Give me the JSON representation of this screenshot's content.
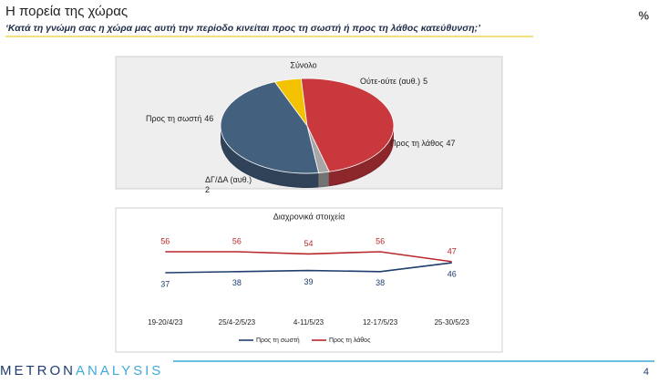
{
  "header": {
    "title": "Η πορεία της χώρας",
    "subtitle": "‘Κατά τη γνώμη σας η χώρα μας αυτή την περίοδο κινείται προς τη σωστή ή προς τη λάθος κατεύθυνση;’",
    "unit": "%"
  },
  "footer": {
    "brand_dark": "METRON",
    "brand_light": "ANALYSIS",
    "page": "4"
  },
  "chart_data": [
    {
      "type": "pie",
      "title": "Σύνολο",
      "categories": [
        "Ούτε-ούτε (αυθ.)",
        "Προς τη λάθος",
        "ΔΓ/ΔΑ (αυθ.)",
        "Προς τη σωστή"
      ],
      "values": [
        5,
        47,
        2,
        46
      ],
      "colors": [
        "#f2c200",
        "#c8383d",
        "#a6a6a6",
        "#44607f"
      ]
    },
    {
      "type": "line",
      "title": "Διαχρονικά στοιχεία",
      "categories": [
        "19-20/4/23",
        "25/4-2/5/23",
        "4-11/5/23",
        "12-17/5/23",
        "25-30/5/23"
      ],
      "series": [
        {
          "name": "Προς τη σωστή",
          "color": "#1f3e6e",
          "values": [
            37,
            38,
            39,
            38,
            46
          ]
        },
        {
          "name": "Προς τη λάθος",
          "color": "#b8282c",
          "values": [
            56,
            56,
            54,
            56,
            47
          ]
        }
      ]
    }
  ]
}
